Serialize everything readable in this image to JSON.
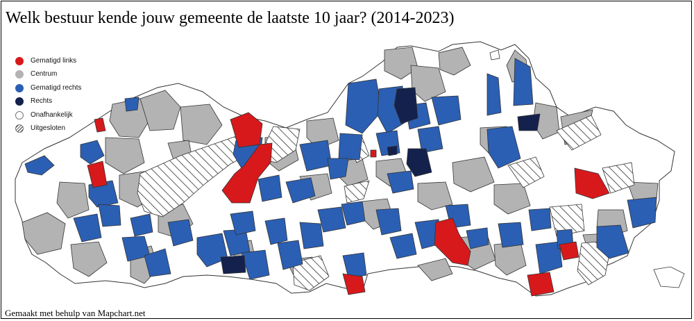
{
  "title": "Welk bestuur kende jouw gemeente de laatste 10 jaar? (2014-2023)",
  "credit": "Gemaakt met behulp van Mapchart.net",
  "colors": {
    "gematigd_links": "#d7191c",
    "centrum": "#b3b3b3",
    "gematigd_rechts": "#2b5fb3",
    "rechts": "#14214d",
    "onafhankelijk": "#ffffff",
    "border": "#333333"
  },
  "legend": [
    {
      "label": "Gematigd links",
      "key": "gematigd_links"
    },
    {
      "label": "Centrum",
      "key": "centrum"
    },
    {
      "label": "Gematigd rechts",
      "key": "gematigd_rechts"
    },
    {
      "label": "Rechts",
      "key": "rechts"
    },
    {
      "label": "Onafhankelijk",
      "key": "onafhankelijk"
    },
    {
      "label": "Uitgesloten",
      "key": "uitgesloten"
    }
  ]
}
